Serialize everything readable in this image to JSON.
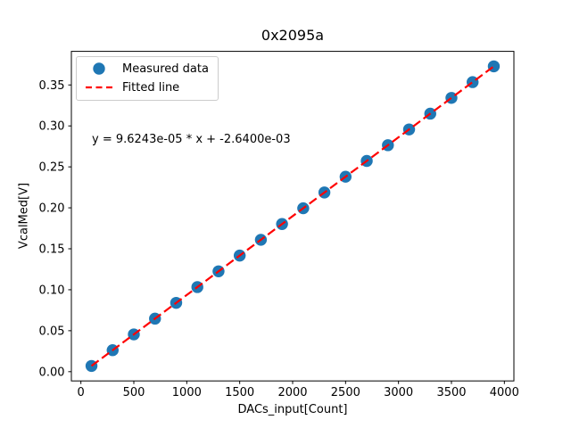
{
  "chart_data": {
    "type": "scatter",
    "title": "0x2095a",
    "xlabel": "DACs_input[Count]",
    "ylabel": "VcalMed[V]",
    "annotation": "y = 9.6243e-05 * x + -2.6400e-03",
    "xlim": [
      -90,
      4090
    ],
    "ylim": [
      -0.0113,
      0.391
    ],
    "grid": false,
    "x_tick_values": [
      0,
      500,
      1000,
      1500,
      2000,
      2500,
      3000,
      3500,
      4000
    ],
    "x_tick_labels": [
      "0",
      "500",
      "1000",
      "1500",
      "2000",
      "2500",
      "3000",
      "3500",
      "4000"
    ],
    "y_tick_values": [
      0.0,
      0.05,
      0.1,
      0.15,
      0.2,
      0.25,
      0.3,
      0.35
    ],
    "y_tick_labels": [
      "0.00",
      "0.05",
      "0.10",
      "0.15",
      "0.20",
      "0.25",
      "0.30",
      "0.35"
    ],
    "legend": {
      "position": "upper left",
      "entries": [
        {
          "label": "Measured data",
          "marker": "circle",
          "color": "#1f77b4"
        },
        {
          "label": "Fitted line",
          "marker": "dashed-line",
          "color": "#ff0000"
        }
      ]
    },
    "series": [
      {
        "name": "Measured data",
        "type": "scatter",
        "color": "#1f77b4",
        "marker_radius_px": 6.7,
        "x": [
          100,
          300,
          500,
          700,
          900,
          1100,
          1300,
          1500,
          1700,
          1900,
          2100,
          2300,
          2500,
          2700,
          2900,
          3100,
          3300,
          3500,
          3700,
          3900
        ],
        "y": [
          0.00698,
          0.02623,
          0.04548,
          0.06473,
          0.08398,
          0.10323,
          0.12248,
          0.14172,
          0.16097,
          0.18022,
          0.19947,
          0.21872,
          0.23797,
          0.25722,
          0.27646,
          0.29571,
          0.31496,
          0.33421,
          0.35346,
          0.37271
        ]
      },
      {
        "name": "Fitted line",
        "type": "line",
        "style": "dashed",
        "color": "#ff0000",
        "slope": 9.6243e-05,
        "intercept": -0.00264,
        "x_start": 100,
        "x_end": 3900
      }
    ],
    "colors": {
      "background": "#ffffff",
      "axes_frame": "#000000",
      "text": "#000000",
      "legend_border": "#cccccc"
    }
  }
}
